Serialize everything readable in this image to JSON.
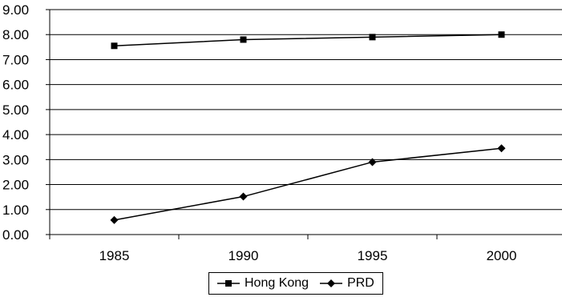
{
  "chart_data": {
    "type": "line",
    "title": "",
    "xlabel": "",
    "ylabel": "",
    "categories": [
      "1985",
      "1990",
      "1995",
      "2000"
    ],
    "ylim": [
      0,
      9
    ],
    "yticks": [
      "0.00",
      "1.00",
      "2.00",
      "3.00",
      "4.00",
      "5.00",
      "6.00",
      "7.00",
      "8.00",
      "9.00"
    ],
    "grid": "horizontal",
    "legend_position": "bottom",
    "series": [
      {
        "name": "Hong Kong",
        "marker": "square",
        "values": [
          7.55,
          7.8,
          7.9,
          8.0
        ]
      },
      {
        "name": "PRD",
        "marker": "diamond",
        "values": [
          0.58,
          1.52,
          2.9,
          3.45
        ]
      }
    ]
  }
}
